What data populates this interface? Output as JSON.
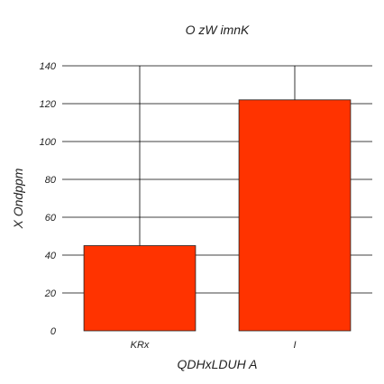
{
  "chart_data": {
    "type": "bar",
    "title": "O zW imnK",
    "xlabel": "QDHxLDUH  A",
    "ylabel": "X Ondppm",
    "categories": [
      "KRx",
      "I"
    ],
    "values": [
      45,
      122
    ],
    "ylim": [
      0,
      140
    ],
    "yticks": [
      0,
      20,
      40,
      60,
      80,
      100,
      120,
      140
    ],
    "grid": true,
    "bar_color": "#ff3300"
  }
}
